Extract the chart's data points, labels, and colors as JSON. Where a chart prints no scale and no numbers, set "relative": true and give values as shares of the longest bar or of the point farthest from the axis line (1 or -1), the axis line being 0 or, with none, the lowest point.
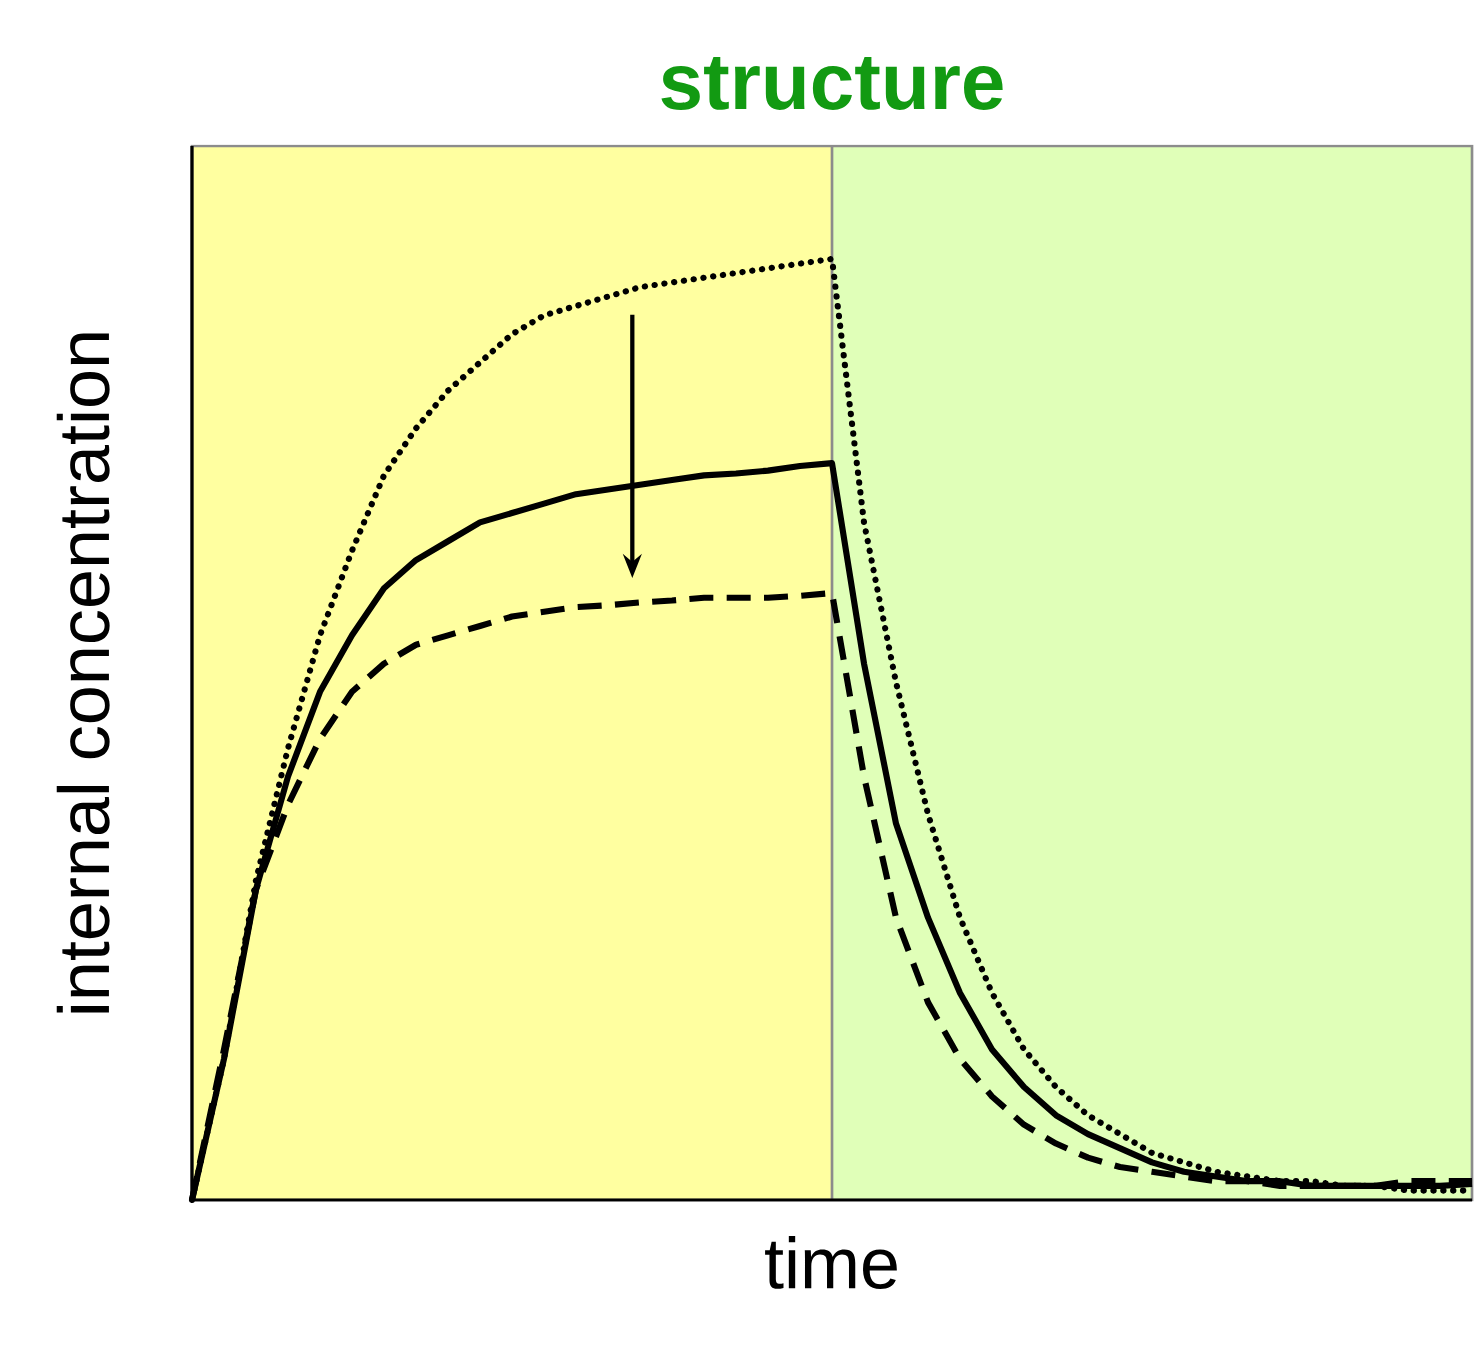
{
  "chart_data": {
    "type": "line",
    "title": "structure",
    "xlabel": "time",
    "ylabel": "internal concentration",
    "relative": true,
    "categories": [
      null,
      null,
      null,
      null,
      null,
      null,
      null,
      null,
      null,
      null,
      null,
      null,
      null,
      null,
      null,
      null,
      null,
      null,
      null,
      null,
      null,
      null,
      null,
      null,
      null,
      null,
      null,
      null,
      null,
      null,
      null,
      null,
      null,
      null,
      null,
      null,
      null,
      null,
      null,
      null,
      null
    ],
    "series": [
      {
        "color": "#000000",
        "line_style": "dotted",
        "values": [
          0,
          0.15,
          0.34,
          0.48,
          0.6,
          0.69,
          0.77,
          0.82,
          0.86,
          0.89,
          0.92,
          0.94,
          0.95,
          0.96,
          0.97,
          0.975,
          0.98,
          0.985,
          0.99,
          0.995,
          1.0,
          0.72,
          0.55,
          0.41,
          0.3,
          0.22,
          0.16,
          0.12,
          0.09,
          0.07,
          0.05,
          0.04,
          0.03,
          0.025,
          0.02,
          0.02,
          0.015,
          0.015,
          0.01,
          0.01,
          0.01
        ]
      },
      {
        "color": "#000000",
        "line_style": "solid",
        "values": [
          0,
          0.15,
          0.33,
          0.45,
          0.54,
          0.6,
          0.65,
          0.68,
          0.7,
          0.72,
          0.73,
          0.74,
          0.75,
          0.755,
          0.76,
          0.765,
          0.77,
          0.772,
          0.775,
          0.78,
          0.783,
          0.57,
          0.4,
          0.3,
          0.22,
          0.16,
          0.12,
          0.09,
          0.07,
          0.055,
          0.04,
          0.03,
          0.025,
          0.02,
          0.02,
          0.015,
          0.015,
          0.015,
          0.015,
          0.015,
          0.017
        ]
      },
      {
        "color": "#000000",
        "line_style": "dashed",
        "values": [
          0,
          0.16,
          0.33,
          0.42,
          0.49,
          0.54,
          0.57,
          0.59,
          0.6,
          0.61,
          0.62,
          0.625,
          0.63,
          0.632,
          0.635,
          0.637,
          0.64,
          0.64,
          0.64,
          0.642,
          0.645,
          0.45,
          0.3,
          0.21,
          0.15,
          0.11,
          0.08,
          0.06,
          0.045,
          0.035,
          0.03,
          0.025,
          0.02,
          0.02,
          0.015,
          0.015,
          0.015,
          0.015,
          0.02,
          0.02,
          0.02
        ]
      }
    ]
  }
}
